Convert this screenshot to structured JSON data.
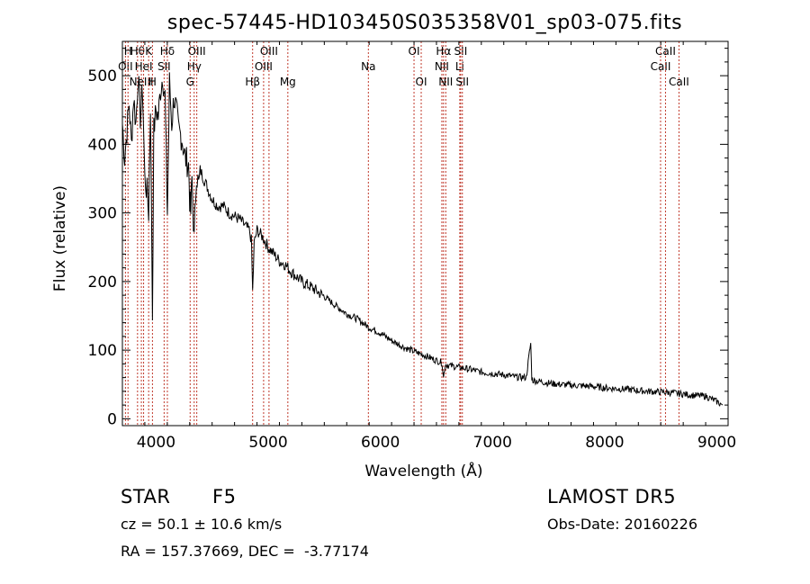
{
  "chart_data": {
    "type": "line",
    "title": "spec-57445-HD103450S035358V01_sp03-075.fits",
    "xlabel": "Wavelength (Å)",
    "ylabel": "Flux (relative)",
    "xlim": [
      3700,
      9100
    ],
    "ylim": [
      -10,
      550
    ],
    "xticks": [
      4000,
      5000,
      6000,
      7000,
      8000,
      9000
    ],
    "yticks": [
      0,
      100,
      200,
      300,
      400,
      500
    ],
    "grid": false,
    "series": [
      {
        "color": "#000000",
        "x": [
          3700,
          3720,
          3740,
          3760,
          3780,
          3800,
          3820,
          3840,
          3860,
          3880,
          3900,
          3920,
          3934,
          3950,
          3968,
          3980,
          4000,
          4020,
          4040,
          4060,
          4080,
          4101,
          4120,
          4140,
          4160,
          4180,
          4200,
          4230,
          4260,
          4290,
          4300,
          4310,
          4320,
          4340,
          4360,
          4380,
          4400,
          4450,
          4500,
          4550,
          4600,
          4650,
          4700,
          4750,
          4800,
          4830,
          4850,
          4861,
          4875,
          4900,
          4950,
          5000,
          5050,
          5100,
          5150,
          5200,
          5300,
          5400,
          5500,
          5600,
          5700,
          5800,
          5900,
          6000,
          6100,
          6200,
          6300,
          6400,
          6500,
          6550,
          6563,
          6580,
          6600,
          6700,
          6800,
          6900,
          7000,
          7100,
          7200,
          7300,
          7340,
          7350,
          7360,
          7400,
          7500,
          7600,
          7700,
          7800,
          7900,
          8000,
          8100,
          8200,
          8300,
          8400,
          8500,
          8600,
          8700,
          8800,
          8900,
          9000,
          9050
        ],
        "y": [
          430,
          380,
          420,
          460,
          400,
          470,
          430,
          500,
          440,
          480,
          350,
          330,
          300,
          460,
          150,
          420,
          450,
          440,
          480,
          500,
          470,
          300,
          490,
          430,
          470,
          450,
          420,
          410,
          380,
          370,
          320,
          300,
          350,
          260,
          360,
          340,
          360,
          340,
          320,
          310,
          310,
          300,
          295,
          290,
          280,
          275,
          260,
          185,
          255,
          275,
          265,
          250,
          240,
          230,
          225,
          215,
          200,
          190,
          178,
          165,
          153,
          145,
          133,
          125,
          114,
          105,
          98,
          92,
          85,
          82,
          60,
          80,
          78,
          75,
          72,
          68,
          66,
          64,
          61,
          60,
          110,
          60,
          56,
          55,
          52,
          50,
          49,
          48,
          47,
          45,
          44,
          43,
          41,
          40,
          39,
          38,
          36,
          34,
          33,
          25,
          20
        ]
      }
    ],
    "lines": [
      {
        "x": 3727,
        "text": "OII",
        "row": 1
      },
      {
        "x": 3750,
        "text": "H",
        "row": 0
      },
      {
        "x": 3835,
        "text": "Hθ",
        "row": 0
      },
      {
        "x": 3869,
        "text": "NeIII",
        "row": 2
      },
      {
        "x": 3889,
        "text": "HeI",
        "row": 1
      },
      {
        "x": 3934,
        "text": "K",
        "row": 0
      },
      {
        "x": 3968,
        "text": "H",
        "row": 2
      },
      {
        "x": 4072,
        "text": "SII",
        "row": 1
      },
      {
        "x": 4101,
        "text": "Hδ",
        "row": 0
      },
      {
        "x": 4304,
        "text": "G",
        "row": 2
      },
      {
        "x": 4340,
        "text": "Hγ",
        "row": 1
      },
      {
        "x": 4363,
        "text": "OIII",
        "row": 0
      },
      {
        "x": 4861,
        "text": "Hβ",
        "row": 2
      },
      {
        "x": 4959,
        "text": "OIII",
        "row": 1
      },
      {
        "x": 5007,
        "text": "OIII",
        "row": 0
      },
      {
        "x": 5175,
        "text": "Mg",
        "row": 2
      },
      {
        "x": 5893,
        "text": "Na",
        "row": 1
      },
      {
        "x": 6300,
        "text": "OI",
        "row": 0
      },
      {
        "x": 6364,
        "text": "OI",
        "row": 2
      },
      {
        "x": 6548,
        "text": "NII",
        "row": 1
      },
      {
        "x": 6563,
        "text": "Hα",
        "row": 0
      },
      {
        "x": 6583,
        "text": "NII",
        "row": 2
      },
      {
        "x": 6708,
        "text": "Li",
        "row": 1
      },
      {
        "x": 6716,
        "text": "SII",
        "row": 0
      },
      {
        "x": 6731,
        "text": "SII",
        "row": 2
      },
      {
        "x": 8498,
        "text": "CaII",
        "row": 1
      },
      {
        "x": 8542,
        "text": "CaII",
        "row": 0
      },
      {
        "x": 8662,
        "text": "CaII",
        "row": 2
      }
    ]
  },
  "footer": {
    "object_type": "STAR",
    "subclass": "F5",
    "survey": "LAMOST DR5",
    "cz": "cz = 50.1 ± 10.6 km/s",
    "obs_date": "Obs-Date: 20160226",
    "coords": "RA = 157.37669, DEC =  -3.77174"
  }
}
